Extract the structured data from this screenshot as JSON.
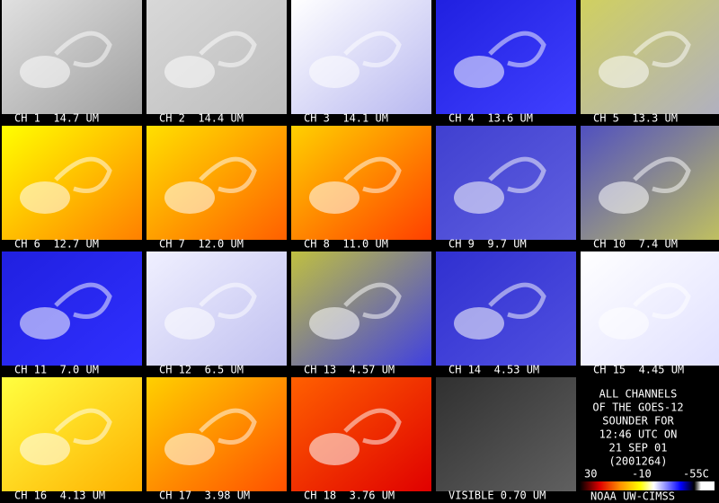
{
  "panels": [
    {
      "label": "CH 1  14.7 UM"
    },
    {
      "label": "CH 2  14.4 UM"
    },
    {
      "label": "CH 3  14.1 UM"
    },
    {
      "label": "CH 4  13.6 UM"
    },
    {
      "label": "CH 5  13.3 UM"
    },
    {
      "label": "CH 6  12.7 UM"
    },
    {
      "label": "CH 7  12.0 UM"
    },
    {
      "label": "CH 8  11.0 UM"
    },
    {
      "label": "CH 9  9.7 UM"
    },
    {
      "label": "CH 10  7.4 UM"
    },
    {
      "label": "CH 11  7.0 UM"
    },
    {
      "label": "CH 12  6.5 UM"
    },
    {
      "label": "CH 13  4.57 UM"
    },
    {
      "label": "CH 14  4.53 UM"
    },
    {
      "label": "CH 15  4.45 UM"
    },
    {
      "label": "CH 16  4.13 UM"
    },
    {
      "label": "CH 17  3.98 UM"
    },
    {
      "label": "CH 18  3.76 UM"
    },
    {
      "label": "VISIBLE 0.70 UM"
    }
  ],
  "info": [
    "ALL CHANNELS",
    "OF THE GOES-12",
    "SOUNDER FOR",
    "12:46 UTC ON",
    "21 SEP 01",
    "(2001264)"
  ],
  "colorbar_labels": [
    "30",
    "-10",
    "-55C"
  ],
  "credit": "NOAA UW-CIMSS"
}
